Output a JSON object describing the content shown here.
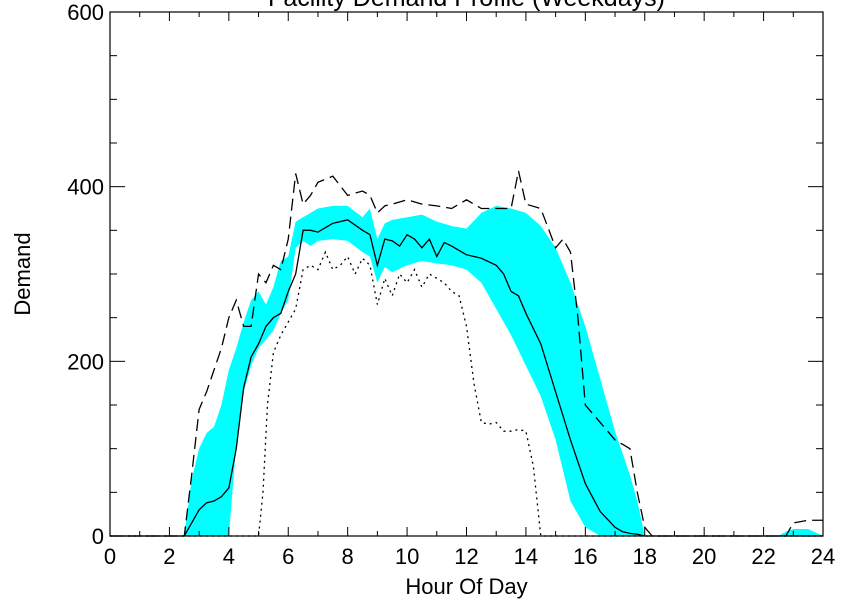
{
  "chart_data": {
    "type": "area",
    "title": "Facility Demand Profile (Weekdays)",
    "xlabel": "Hour Of Day",
    "ylabel": "Demand",
    "xlim": [
      0,
      24
    ],
    "ylim": [
      0,
      600
    ],
    "x_ticks": [
      0,
      2,
      4,
      6,
      8,
      10,
      12,
      14,
      16,
      18,
      20,
      22,
      24
    ],
    "y_ticks": [
      0,
      200,
      400,
      600
    ],
    "grid": false,
    "colors": {
      "band": "#00ffff",
      "line": "#000000",
      "background": "#ffffff"
    },
    "series": [
      {
        "style": "band",
        "color": "#00ffff",
        "x": [
          0,
          2.5,
          2.75,
          3.0,
          3.25,
          3.5,
          3.75,
          4.0,
          4.25,
          4.5,
          4.75,
          5.0,
          5.25,
          5.5,
          5.75,
          6.0,
          6.25,
          6.5,
          6.75,
          7.0,
          7.5,
          8.0,
          8.5,
          8.75,
          9.0,
          9.25,
          9.5,
          10.0,
          10.5,
          11.0,
          11.5,
          12.0,
          12.5,
          13.0,
          13.5,
          14.0,
          14.5,
          15.0,
          15.5,
          16.0,
          16.5,
          17.0,
          17.5,
          17.75,
          18.0,
          18.25,
          22.5,
          22.75,
          23.0,
          23.5,
          24.0
        ],
        "upper": [
          0,
          0,
          65,
          100,
          118,
          125,
          150,
          190,
          215,
          245,
          270,
          280,
          265,
          285,
          315,
          320,
          360,
          365,
          370,
          375,
          378,
          378,
          365,
          375,
          340,
          358,
          362,
          365,
          368,
          360,
          355,
          352,
          370,
          378,
          375,
          370,
          355,
          330,
          290,
          240,
          180,
          120,
          70,
          40,
          0,
          0,
          0,
          5,
          8,
          8,
          0
        ],
        "lower": [
          0,
          0,
          0,
          0,
          0,
          0,
          0,
          0,
          105,
          165,
          195,
          215,
          225,
          235,
          255,
          270,
          330,
          338,
          332,
          338,
          340,
          338,
          325,
          320,
          290,
          308,
          302,
          310,
          315,
          312,
          310,
          305,
          290,
          260,
          230,
          195,
          160,
          110,
          40,
          10,
          0,
          0,
          0,
          0,
          0,
          0,
          0,
          0,
          0,
          0,
          0
        ]
      },
      {
        "style": "solid",
        "color": "#000000",
        "x": [
          0,
          2.5,
          2.75,
          3.0,
          3.25,
          3.5,
          3.75,
          4.0,
          4.25,
          4.5,
          4.75,
          5.0,
          5.25,
          5.5,
          5.75,
          6.0,
          6.25,
          6.5,
          6.75,
          7.0,
          7.5,
          8.0,
          8.5,
          8.75,
          9.0,
          9.25,
          9.5,
          9.75,
          10.0,
          10.25,
          10.5,
          10.75,
          11.0,
          11.25,
          11.5,
          12.0,
          12.5,
          13.0,
          13.25,
          13.5,
          13.75,
          14.0,
          14.5,
          15.0,
          15.5,
          16.0,
          16.5,
          17.0,
          17.25,
          17.5,
          17.75,
          18.0,
          18.25,
          22.5,
          23.0,
          23.5,
          24.0
        ],
        "y": [
          0,
          0,
          15,
          30,
          38,
          40,
          45,
          55,
          100,
          170,
          205,
          220,
          240,
          250,
          255,
          280,
          300,
          350,
          350,
          348,
          358,
          362,
          350,
          345,
          310,
          340,
          338,
          332,
          345,
          340,
          330,
          340,
          320,
          336,
          332,
          322,
          318,
          310,
          300,
          280,
          275,
          255,
          220,
          165,
          110,
          60,
          28,
          10,
          5,
          3,
          2,
          0,
          0,
          0,
          0,
          0,
          0
        ]
      },
      {
        "style": "dashed",
        "color": "#000000",
        "x": [
          0,
          2.5,
          2.75,
          3.0,
          3.25,
          3.5,
          3.75,
          4.0,
          4.25,
          4.5,
          4.75,
          5.0,
          5.25,
          5.5,
          5.75,
          6.0,
          6.25,
          6.5,
          6.75,
          7.0,
          7.5,
          8.0,
          8.5,
          8.75,
          9.0,
          9.25,
          9.5,
          10.0,
          10.5,
          11.0,
          11.5,
          12.0,
          12.5,
          13.0,
          13.5,
          13.75,
          14.0,
          14.5,
          15.0,
          15.25,
          15.5,
          15.75,
          16.0,
          16.5,
          17.0,
          17.5,
          17.75,
          18.0,
          18.25,
          22.5,
          22.75,
          23.0,
          23.5,
          24.0
        ],
        "y": [
          0,
          0,
          70,
          145,
          165,
          190,
          215,
          250,
          270,
          240,
          240,
          300,
          290,
          310,
          305,
          340,
          415,
          380,
          390,
          405,
          412,
          390,
          395,
          390,
          370,
          378,
          380,
          385,
          380,
          378,
          375,
          385,
          375,
          375,
          375,
          418,
          380,
          375,
          330,
          340,
          325,
          250,
          150,
          130,
          110,
          100,
          50,
          10,
          0,
          0,
          0,
          15,
          18,
          18
        ]
      },
      {
        "style": "dotted",
        "color": "#000000",
        "x": [
          0,
          5.0,
          5.15,
          5.3,
          5.5,
          5.75,
          6.0,
          6.25,
          6.5,
          6.75,
          7.0,
          7.25,
          7.5,
          7.75,
          8.0,
          8.25,
          8.5,
          8.75,
          9.0,
          9.25,
          9.5,
          9.75,
          10.0,
          10.25,
          10.5,
          10.75,
          11.0,
          11.25,
          11.5,
          11.75,
          12.0,
          12.25,
          12.5,
          12.75,
          13.0,
          13.25,
          13.5,
          13.75,
          14.0,
          14.25,
          14.5,
          14.75,
          24.0
        ],
        "y": [
          0,
          0,
          50,
          150,
          210,
          230,
          245,
          260,
          305,
          310,
          305,
          325,
          305,
          310,
          320,
          300,
          318,
          310,
          265,
          295,
          275,
          300,
          290,
          305,
          285,
          300,
          295,
          290,
          280,
          275,
          240,
          175,
          130,
          128,
          130,
          120,
          120,
          122,
          120,
          80,
          0,
          0,
          0
        ]
      }
    ]
  }
}
